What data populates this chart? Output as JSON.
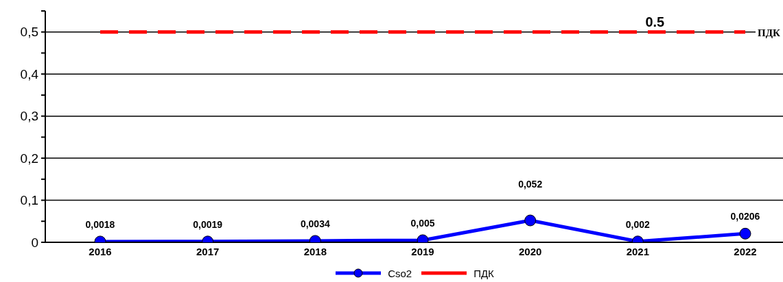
{
  "chart_data": {
    "type": "line",
    "categories": [
      "2016",
      "2017",
      "2018",
      "2019",
      "2020",
      "2021",
      "2022"
    ],
    "series": [
      {
        "name": "Cso2",
        "color": "#0000ff",
        "marker": "circle",
        "line_style": "solid",
        "values": [
          0.0018,
          0.0019,
          0.0034,
          0.005,
          0.052,
          0.002,
          0.0206
        ],
        "value_labels": [
          "0,0018",
          "0,0019",
          "0,0034",
          "0,005",
          "0,052",
          "0,002",
          "0,0206"
        ]
      },
      {
        "name": "ПДК",
        "color": "#ff0000",
        "marker": "none",
        "line_style": "dashed",
        "values": [
          0.5,
          0.5,
          0.5,
          0.5,
          0.5,
          0.5,
          0.5
        ],
        "value_labels": [
          null,
          null,
          null,
          null,
          null,
          "0.5",
          null
        ]
      }
    ],
    "ylim": [
      0,
      0.55
    ],
    "yticks": [
      0,
      {
        "value": 0.05,
        "label": null
      },
      {
        "value": 0.1,
        "label": "0,1"
      },
      {
        "value": 0.15,
        "label": null
      },
      {
        "value": 0.2,
        "label": "0,2"
      },
      {
        "value": 0.25,
        "label": null
      },
      {
        "value": 0.3,
        "label": "0,3"
      },
      {
        "value": 0.35,
        "label": null
      },
      {
        "value": 0.4,
        "label": "0,4"
      },
      {
        "value": 0.45,
        "label": null
      },
      {
        "value": 0.5,
        "label": "0,5"
      },
      {
        "value": 0.55,
        "label": null
      }
    ],
    "grid": "y",
    "legend": "bottom",
    "annotations": [
      "ПДК"
    ]
  }
}
